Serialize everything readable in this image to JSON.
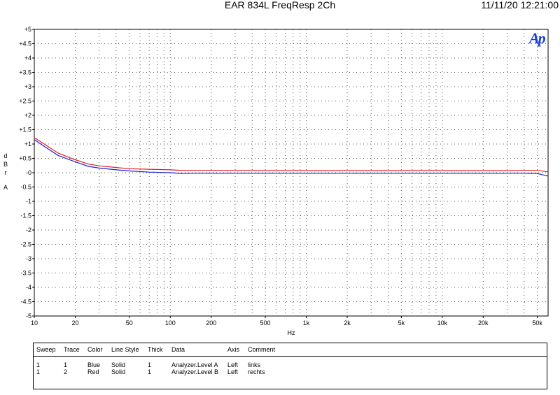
{
  "header": {
    "title": "EAR 834L FreqResp 2Ch",
    "timestamp": "11/11/20 12:21:00"
  },
  "logo_text": "Ap",
  "y_unit_letters": [
    "d",
    "B",
    "r",
    "",
    "A"
  ],
  "colors": {
    "grid": "#555555",
    "frame": "#000000",
    "blue": "#1f1fe0",
    "red": "#e01f1f",
    "logo": "#1a3fd6"
  },
  "chart_data": {
    "type": "line",
    "xlabel": "Hz",
    "ylabel": "dBr A",
    "xscale": "log",
    "xlim": [
      10,
      60000
    ],
    "ylim": [
      -5,
      5
    ],
    "grid": true,
    "x_ticks": [
      {
        "value": 10,
        "label": "10"
      },
      {
        "value": 20,
        "label": "20"
      },
      {
        "value": 50,
        "label": "50"
      },
      {
        "value": 100,
        "label": "100"
      },
      {
        "value": 200,
        "label": "200"
      },
      {
        "value": 500,
        "label": "500"
      },
      {
        "value": 1000,
        "label": "1k"
      },
      {
        "value": 2000,
        "label": "2k"
      },
      {
        "value": 5000,
        "label": "5k"
      },
      {
        "value": 10000,
        "label": "10k"
      },
      {
        "value": 20000,
        "label": "20k"
      },
      {
        "value": 50000,
        "label": "50k"
      }
    ],
    "y_ticks": [
      {
        "value": 5,
        "label": "+5"
      },
      {
        "value": 4.5,
        "label": "+4.5"
      },
      {
        "value": 4,
        "label": "+4"
      },
      {
        "value": 3.5,
        "label": "+3.5"
      },
      {
        "value": 3,
        "label": "+3"
      },
      {
        "value": 2.5,
        "label": "+2.5"
      },
      {
        "value": 2,
        "label": "+2"
      },
      {
        "value": 1.5,
        "label": "+1.5"
      },
      {
        "value": 1,
        "label": "+1"
      },
      {
        "value": 0.5,
        "label": "+0.5"
      },
      {
        "value": 0,
        "label": "-0"
      },
      {
        "value": -0.5,
        "label": "-0.5"
      },
      {
        "value": -1,
        "label": "-1"
      },
      {
        "value": -1.5,
        "label": "-1.5"
      },
      {
        "value": -2,
        "label": "-2"
      },
      {
        "value": -2.5,
        "label": "-2.5"
      },
      {
        "value": -3,
        "label": "-3"
      },
      {
        "value": -3.5,
        "label": "-3.5"
      },
      {
        "value": -4,
        "label": "-4"
      },
      {
        "value": -4.5,
        "label": "-4.5"
      },
      {
        "value": -5,
        "label": "-5"
      }
    ],
    "series": [
      {
        "name": "links",
        "color": "blue",
        "x": [
          10,
          12,
          15,
          20,
          25,
          30,
          40,
          50,
          70,
          100,
          120,
          150,
          200,
          500,
          1000,
          2000,
          5000,
          10000,
          20000,
          30000,
          40000,
          50000,
          60000
        ],
        "y": [
          1.15,
          0.9,
          0.6,
          0.38,
          0.22,
          0.16,
          0.1,
          0.06,
          0.02,
          0.0,
          -0.03,
          -0.02,
          -0.02,
          -0.02,
          -0.02,
          -0.02,
          -0.02,
          -0.02,
          -0.02,
          -0.02,
          -0.02,
          -0.03,
          -0.12
        ]
      },
      {
        "name": "rechts",
        "color": "red",
        "x": [
          10,
          12,
          15,
          20,
          25,
          30,
          40,
          50,
          70,
          100,
          120,
          150,
          200,
          500,
          1000,
          2000,
          5000,
          10000,
          20000,
          30000,
          40000,
          50000,
          60000
        ],
        "y": [
          1.22,
          0.98,
          0.68,
          0.45,
          0.3,
          0.24,
          0.18,
          0.14,
          0.12,
          0.1,
          0.08,
          0.08,
          0.08,
          0.07,
          0.07,
          0.07,
          0.07,
          0.07,
          0.07,
          0.07,
          0.08,
          0.08,
          0.03
        ]
      }
    ]
  },
  "legend": {
    "headers": [
      "Sweep",
      "Trace",
      "Color",
      "Line Style",
      "Thick",
      "Data",
      "Axis",
      "Comment"
    ],
    "rows": [
      [
        "1",
        "1",
        "Blue",
        "Solid",
        "1",
        "Analyzer.Level A",
        "Left",
        "links"
      ],
      [
        "1",
        "2",
        "Red",
        "Solid",
        "1",
        "Analyzer.Level B",
        "Left",
        "rechts"
      ]
    ]
  }
}
